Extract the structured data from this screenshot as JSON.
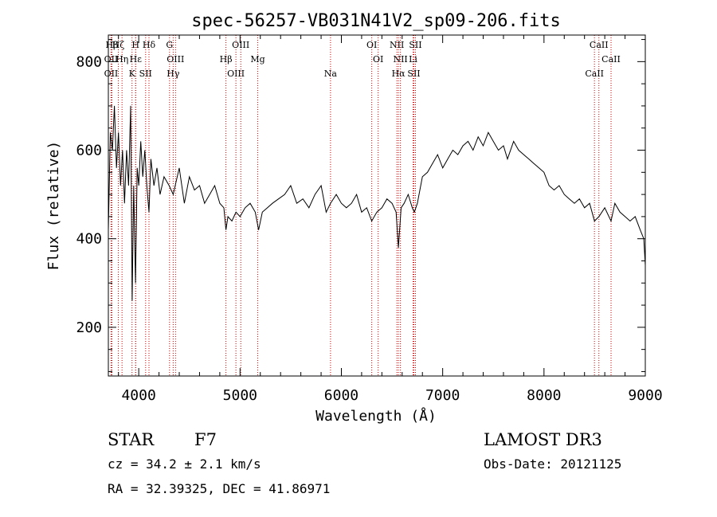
{
  "chart_data": {
    "type": "line",
    "title": "spec-56257-VB031N41V2_sp09-206.fits",
    "xlabel": "Wavelength (Å)",
    "ylabel": "Flux (relative)",
    "xlim": [
      3700,
      9000
    ],
    "ylim": [
      90,
      860
    ],
    "xticks": [
      4000,
      5000,
      6000,
      7000,
      8000,
      9000
    ],
    "yticks": [
      200,
      400,
      600,
      800
    ],
    "grid": false,
    "series": [
      {
        "name": "flux",
        "x": [
          3700,
          3720,
          3740,
          3760,
          3780,
          3800,
          3820,
          3840,
          3860,
          3880,
          3900,
          3920,
          3935,
          3950,
          3968,
          3985,
          4000,
          4020,
          4040,
          4060,
          4080,
          4101,
          4120,
          4150,
          4180,
          4210,
          4250,
          4300,
          4340,
          4400,
          4450,
          4500,
          4550,
          4600,
          4650,
          4700,
          4750,
          4800,
          4840,
          4861,
          4880,
          4920,
          4960,
          5000,
          5050,
          5100,
          5150,
          5183,
          5220,
          5270,
          5320,
          5380,
          5440,
          5500,
          5560,
          5620,
          5680,
          5740,
          5800,
          5850,
          5893,
          5950,
          6000,
          6050,
          6100,
          6150,
          6200,
          6250,
          6300,
          6350,
          6400,
          6450,
          6500,
          6540,
          6563,
          6590,
          6620,
          6660,
          6700,
          6720,
          6750,
          6800,
          6850,
          6900,
          6950,
          7000,
          7050,
          7100,
          7150,
          7200,
          7250,
          7300,
          7350,
          7400,
          7450,
          7500,
          7550,
          7600,
          7640,
          7700,
          7750,
          7800,
          7850,
          7900,
          7950,
          8000,
          8050,
          8100,
          8150,
          8200,
          8250,
          8300,
          8350,
          8400,
          8450,
          8498,
          8542,
          8600,
          8662,
          8700,
          8750,
          8800,
          8850,
          8900,
          8950,
          8985,
          9000
        ],
        "y": [
          420,
          640,
          600,
          700,
          560,
          640,
          520,
          600,
          480,
          600,
          520,
          700,
          260,
          520,
          300,
          560,
          520,
          620,
          540,
          600,
          520,
          460,
          580,
          520,
          560,
          500,
          540,
          520,
          500,
          560,
          480,
          540,
          510,
          520,
          480,
          500,
          520,
          480,
          470,
          420,
          450,
          440,
          460,
          450,
          470,
          480,
          460,
          420,
          460,
          470,
          480,
          490,
          500,
          520,
          480,
          490,
          470,
          500,
          520,
          460,
          480,
          500,
          480,
          470,
          480,
          500,
          460,
          470,
          440,
          460,
          470,
          490,
          480,
          460,
          380,
          470,
          480,
          500,
          470,
          460,
          480,
          540,
          550,
          570,
          590,
          560,
          580,
          600,
          590,
          610,
          620,
          600,
          630,
          610,
          640,
          620,
          600,
          610,
          580,
          620,
          600,
          590,
          580,
          570,
          560,
          550,
          520,
          510,
          520,
          500,
          490,
          480,
          490,
          470,
          480,
          440,
          450,
          470,
          440,
          480,
          460,
          450,
          440,
          450,
          420,
          400,
          340
        ]
      }
    ],
    "lines": [
      {
        "label": "Hβ",
        "x": 3735
      },
      {
        "label": "OII",
        "x": 3727
      },
      {
        "label": "OII",
        "x": 3727
      },
      {
        "label": "Hζ",
        "x": 3798
      },
      {
        "label": "Hη",
        "x": 3835
      },
      {
        "label": "K",
        "x": 3934
      },
      {
        "label": "H",
        "x": 3969
      },
      {
        "label": "Hε",
        "x": 3970
      },
      {
        "label": "SII",
        "x": 4068
      },
      {
        "label": "Hδ",
        "x": 4101
      },
      {
        "label": "OIII",
        "x": 4363
      },
      {
        "label": "Hγ",
        "x": 4340
      },
      {
        "label": "G",
        "x": 4304
      },
      {
        "label": "Hβ",
        "x": 4861
      },
      {
        "label": "OIII",
        "x": 4959
      },
      {
        "label": "OIII",
        "x": 5007
      },
      {
        "label": "Mg",
        "x": 5175
      },
      {
        "label": "Na",
        "x": 5893
      },
      {
        "label": "OI",
        "x": 6300
      },
      {
        "label": "OI",
        "x": 6363
      },
      {
        "label": "Hα",
        "x": 6563
      },
      {
        "label": "NII",
        "x": 6548
      },
      {
        "label": "NII",
        "x": 6583
      },
      {
        "label": "SII",
        "x": 6716
      },
      {
        "label": "SII",
        "x": 6731
      },
      {
        "label": "Li",
        "x": 6708
      },
      {
        "label": "CaII",
        "x": 8498
      },
      {
        "label": "CaII",
        "x": 8542
      },
      {
        "label": "CaII",
        "x": 8662
      }
    ]
  },
  "footer": {
    "class_label": "STAR",
    "subclass": "F7",
    "survey": "LAMOST DR3",
    "cz": "cz = 34.2 ± 2.1 km/s",
    "obs_date": "Obs-Date: 20121125",
    "coords": "RA =  32.39325, DEC =  41.86971"
  },
  "colors": {
    "line": "#000000",
    "marker": "#cc0000"
  }
}
